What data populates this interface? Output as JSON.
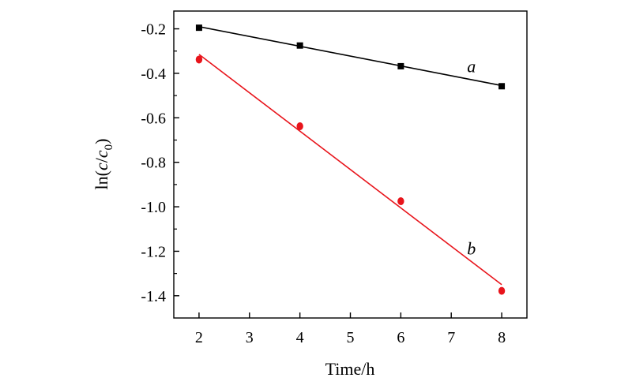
{
  "chart_data": {
    "type": "scatter",
    "title": "",
    "xlabel": "Time/h",
    "ylabel_parts": {
      "prefix": "ln(",
      "c": "c",
      "slash": "/",
      "c0": "c",
      "sub": "0",
      "suffix": ")"
    },
    "xlim": [
      1.5,
      8.5
    ],
    "ylim": [
      -1.5,
      -0.12
    ],
    "xticks": [
      2,
      3,
      4,
      5,
      6,
      7,
      8
    ],
    "xtick_labels": [
      "2",
      "3",
      "4",
      "5",
      "6",
      "7",
      "8"
    ],
    "yticks": [
      -0.2,
      -0.4,
      -0.6,
      -0.8,
      -1.0,
      -1.2,
      -1.4
    ],
    "ytick_labels": [
      "-0.2",
      "-0.4",
      "-0.6",
      "-0.8",
      "-1.0",
      "-1.2",
      "-1.4"
    ],
    "grid": false,
    "series": [
      {
        "name": "a",
        "color": "#000000",
        "marker": "square",
        "x": [
          2,
          4,
          6,
          8
        ],
        "y": [
          -0.195,
          -0.275,
          -0.368,
          -0.458
        ],
        "fit": [
          [
            2,
            -0.19
          ],
          [
            8,
            -0.455
          ]
        ],
        "label_at": [
          7.4,
          -0.395
        ]
      },
      {
        "name": "b",
        "color": "#e8141b",
        "marker": "circle",
        "x": [
          2,
          4,
          6,
          8
        ],
        "y": [
          -0.338,
          -0.638,
          -0.975,
          -1.378
        ],
        "fit": [
          [
            2,
            -0.315
          ],
          [
            8,
            -1.35
          ]
        ],
        "label_at": [
          7.4,
          -1.215
        ]
      }
    ]
  }
}
